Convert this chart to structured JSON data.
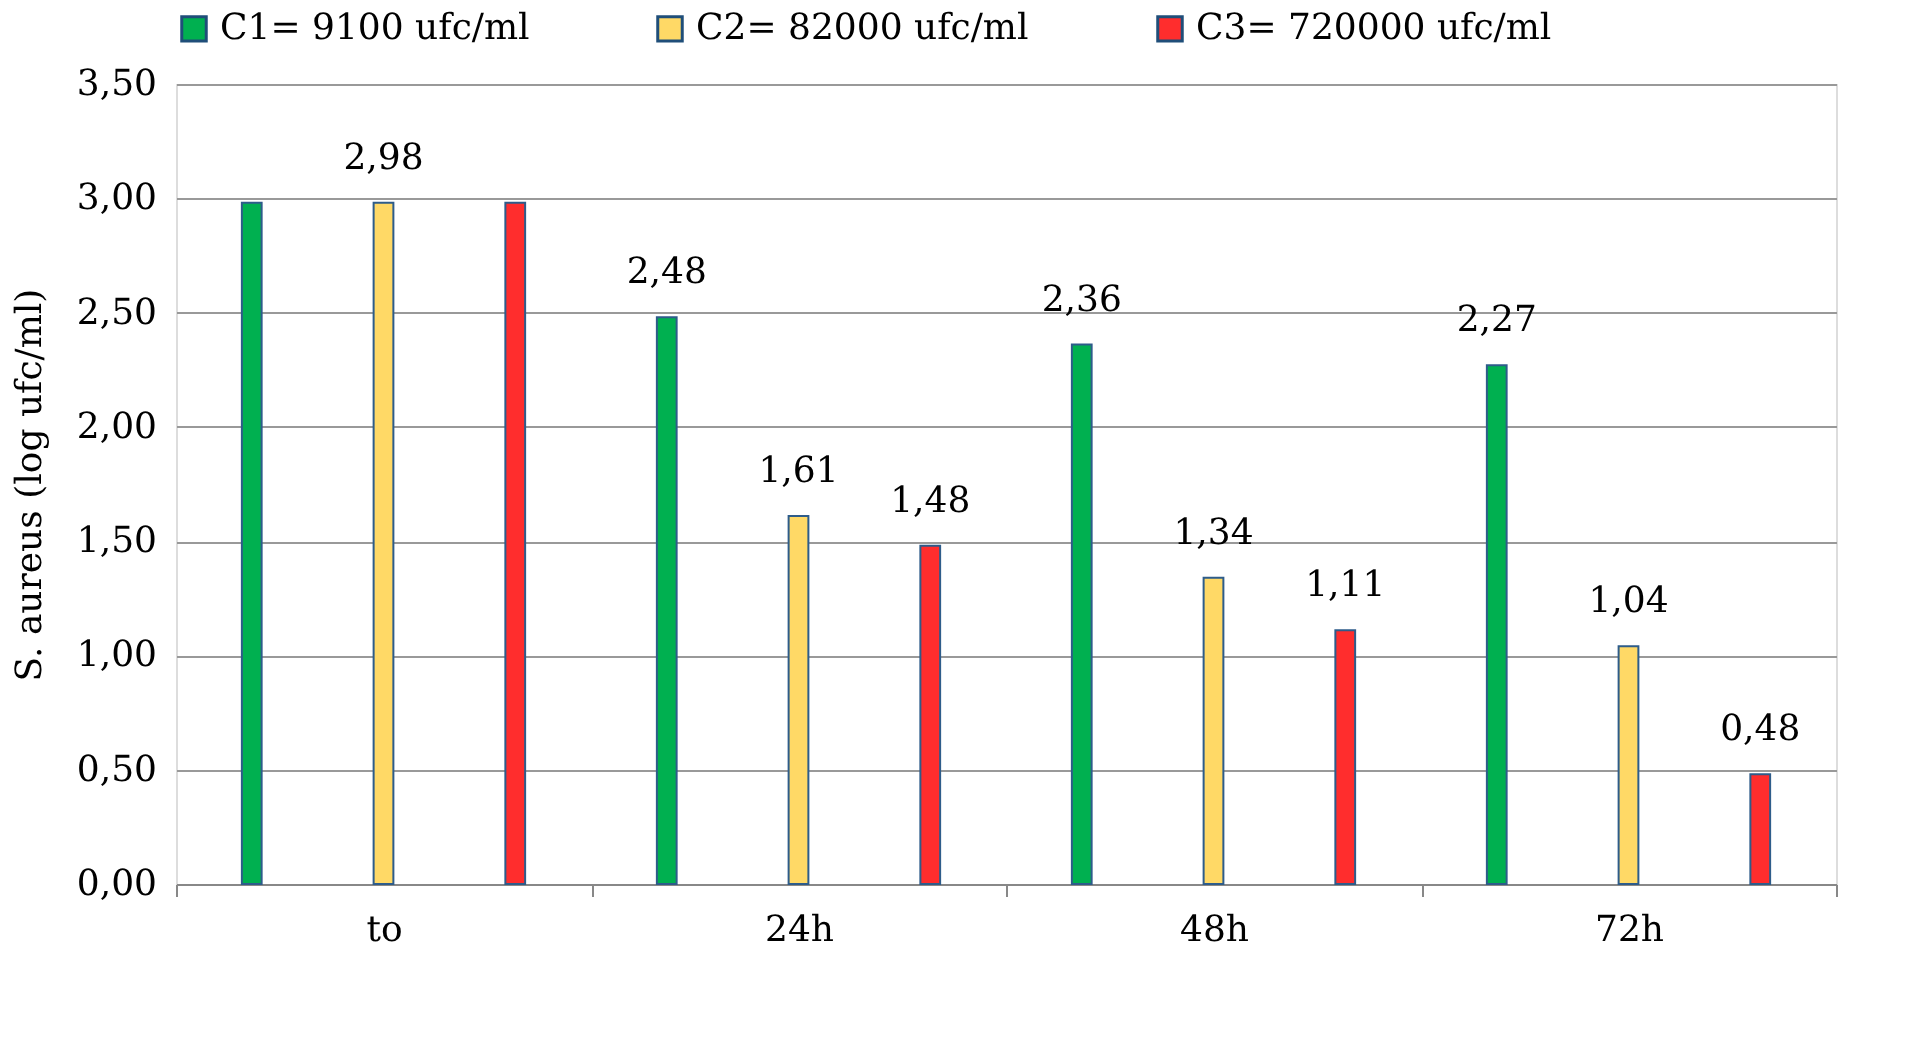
{
  "chart_data": {
    "type": "bar",
    "ylabel": "S. aureus (log ufc/ml)",
    "categories": [
      "to",
      "24h",
      "48h",
      "72h"
    ],
    "series": [
      {
        "name": "C1= 9100 ufc/ml",
        "color": "#00b050",
        "values": [
          2.98,
          2.48,
          2.36,
          2.27
        ],
        "value_labels": [
          null,
          "2,48",
          "2,36",
          "2,27"
        ]
      },
      {
        "name": "C2= 82000 ufc/ml",
        "color": "#ffd966",
        "values": [
          2.98,
          1.61,
          1.34,
          1.04
        ],
        "value_labels": [
          "2,98",
          "1,61",
          "1,34",
          "1,04"
        ]
      },
      {
        "name": "C3= 720000 ufc/ml",
        "color": "#ff2d2d",
        "values": [
          2.98,
          1.48,
          1.11,
          0.48
        ],
        "value_labels": [
          null,
          "1,48",
          "1,11",
          "0,48"
        ]
      }
    ],
    "ylim": [
      0,
      3.5
    ],
    "yticks": [
      {
        "value": 0,
        "label": "0,00"
      },
      {
        "value": 0.5,
        "label": "0,50"
      },
      {
        "value": 1,
        "label": "1,00"
      },
      {
        "value": 1.5,
        "label": "1,50"
      },
      {
        "value": 2,
        "label": "2,00"
      },
      {
        "value": 2.5,
        "label": "2,50"
      },
      {
        "value": 3,
        "label": "3,00"
      },
      {
        "value": 3.5,
        "label": "3,50"
      }
    ],
    "grid": "y",
    "legend": "top"
  }
}
